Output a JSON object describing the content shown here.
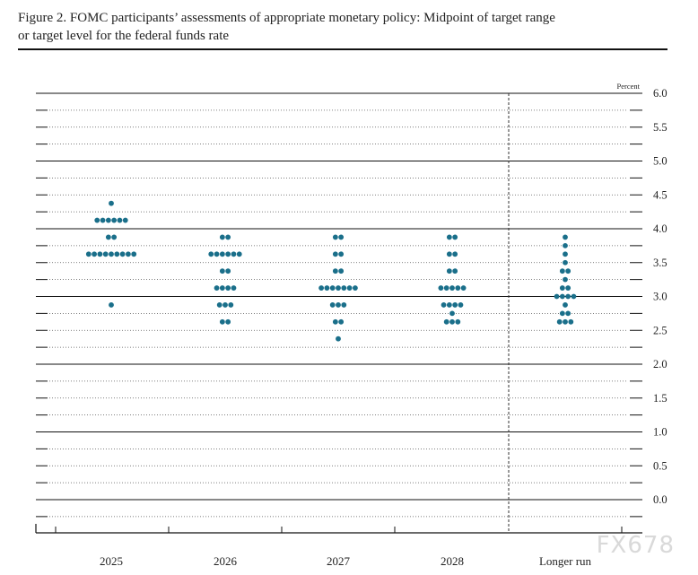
{
  "figure": {
    "title_line1": "Figure 2.  FOMC participants’ assessments of appropriate monetary policy: Midpoint of target range",
    "title_line2": "or target level for the federal funds rate"
  },
  "watermark": "FX678",
  "chart_data": {
    "type": "scatter",
    "subtype": "dot-plot",
    "title": "FOMC participants’ assessments of appropriate monetary policy: Midpoint of target range or target level for the federal funds rate",
    "ylabel": "Percent",
    "ylim": [
      -0.25,
      6.0
    ],
    "y_ticks": [
      "6.0",
      "5.5",
      "5.0",
      "4.5",
      "4.0",
      "3.5",
      "3.0",
      "2.5",
      "2.0",
      "1.5",
      "1.0",
      "0.5",
      "0.0"
    ],
    "grid": true,
    "categories": [
      "2025",
      "2026",
      "2027",
      "2028",
      "Longer run"
    ],
    "dot_color": "#1a6f8a",
    "series": [
      {
        "category": "2025",
        "points": [
          {
            "y": 4.375,
            "count": 1
          },
          {
            "y": 4.125,
            "count": 6
          },
          {
            "y": 3.875,
            "count": 2
          },
          {
            "y": 3.625,
            "count": 9
          },
          {
            "y": 2.875,
            "count": 1
          }
        ]
      },
      {
        "category": "2026",
        "points": [
          {
            "y": 3.875,
            "count": 2
          },
          {
            "y": 3.625,
            "count": 6
          },
          {
            "y": 3.375,
            "count": 2
          },
          {
            "y": 3.125,
            "count": 4
          },
          {
            "y": 2.875,
            "count": 3
          },
          {
            "y": 2.625,
            "count": 2
          }
        ]
      },
      {
        "category": "2027",
        "points": [
          {
            "y": 3.875,
            "count": 2
          },
          {
            "y": 3.625,
            "count": 2
          },
          {
            "y": 3.375,
            "count": 2
          },
          {
            "y": 3.125,
            "count": 7
          },
          {
            "y": 2.875,
            "count": 3
          },
          {
            "y": 2.625,
            "count": 2
          },
          {
            "y": 2.375,
            "count": 1
          }
        ]
      },
      {
        "category": "2028",
        "points": [
          {
            "y": 3.875,
            "count": 2
          },
          {
            "y": 3.625,
            "count": 2
          },
          {
            "y": 3.375,
            "count": 2
          },
          {
            "y": 3.125,
            "count": 5
          },
          {
            "y": 2.875,
            "count": 4
          },
          {
            "y": 2.75,
            "count": 1
          },
          {
            "y": 2.625,
            "count": 3
          }
        ]
      },
      {
        "category": "Longer run",
        "points": [
          {
            "y": 3.875,
            "count": 1
          },
          {
            "y": 3.75,
            "count": 1
          },
          {
            "y": 3.625,
            "count": 1
          },
          {
            "y": 3.5,
            "count": 1
          },
          {
            "y": 3.375,
            "count": 2
          },
          {
            "y": 3.25,
            "count": 1
          },
          {
            "y": 3.125,
            "count": 2
          },
          {
            "y": 3.0,
            "count": 4
          },
          {
            "y": 2.875,
            "count": 1
          },
          {
            "y": 2.75,
            "count": 2
          },
          {
            "y": 2.625,
            "count": 3
          }
        ]
      }
    ]
  }
}
